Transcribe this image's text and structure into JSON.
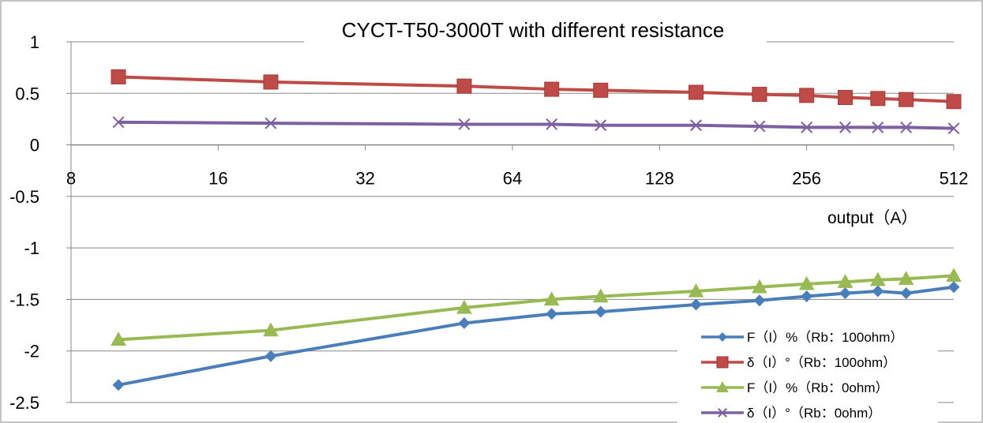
{
  "chart_data": {
    "type": "line",
    "title": "CYCT-T50-3000T with different resistance",
    "xlabel": "output（A）",
    "ylabel": "",
    "x_scale": "log2",
    "xlim": [
      8,
      512
    ],
    "ylim": [
      -2.5,
      1
    ],
    "x_ticks": [
      "8",
      "16",
      "32",
      "64",
      "128",
      "256",
      "512"
    ],
    "y_ticks": [
      "1",
      "0.5",
      "0",
      "-0.5",
      "-1",
      "-1.5",
      "-2",
      "-2.5"
    ],
    "grid": "horizontal",
    "legend_position": "bottom-right",
    "x": [
      10,
      20.5,
      51,
      77,
      97,
      152,
      205,
      256,
      307,
      358,
      409,
      512
    ],
    "series": [
      {
        "name": "F（I）%（Rb：100ohm）",
        "color": "#4A7EBB",
        "marker": "diamond",
        "values": [
          -2.33,
          -2.05,
          -1.73,
          -1.64,
          -1.62,
          -1.55,
          -1.51,
          -1.47,
          -1.44,
          -1.42,
          -1.44,
          -1.38
        ]
      },
      {
        "name": "δ（I）°（Rb：100ohm）",
        "color": "#BE4B48",
        "marker": "square",
        "values": [
          0.66,
          0.61,
          0.57,
          0.54,
          0.53,
          0.51,
          0.49,
          0.48,
          0.46,
          0.45,
          0.44,
          0.42
        ]
      },
      {
        "name": "F（I）%（Rb：0ohm）",
        "color": "#98B954",
        "marker": "triangle",
        "values": [
          -1.89,
          -1.8,
          -1.58,
          -1.5,
          -1.47,
          -1.42,
          -1.38,
          -1.35,
          -1.33,
          -1.31,
          -1.3,
          -1.27
        ]
      },
      {
        "name": "δ（I）°（Rb：0ohm）",
        "color": "#7D60A0",
        "marker": "x",
        "values": [
          0.22,
          0.21,
          0.2,
          0.2,
          0.19,
          0.19,
          0.18,
          0.17,
          0.17,
          0.17,
          0.17,
          0.16
        ]
      }
    ]
  }
}
